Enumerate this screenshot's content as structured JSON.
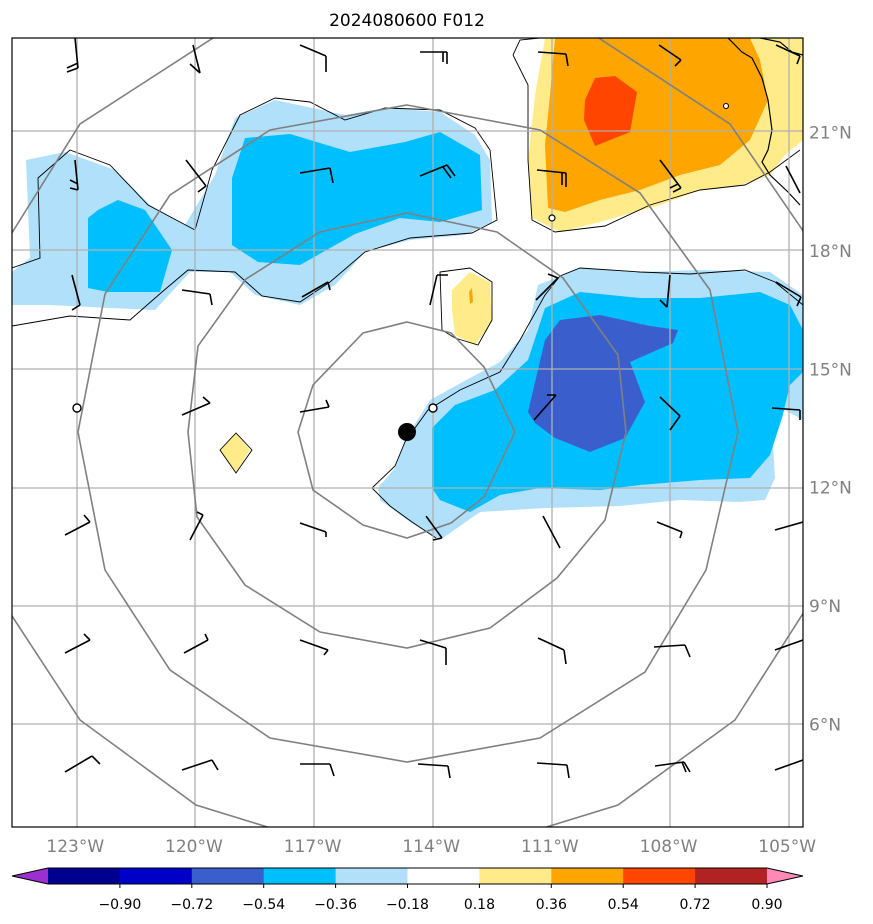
{
  "title": "2024080600 F012",
  "map": {
    "lon_range": [
      -124.6,
      -104.6
    ],
    "lat_range": [
      3.4,
      23.4
    ],
    "lon_ticks": [
      {
        "value": -123,
        "label": "123°W"
      },
      {
        "value": -120,
        "label": "120°W"
      },
      {
        "value": -117,
        "label": "117°W"
      },
      {
        "value": -114,
        "label": "114°W"
      },
      {
        "value": -111,
        "label": "111°W"
      },
      {
        "value": -108,
        "label": "108°W"
      },
      {
        "value": -105,
        "label": "105°W"
      }
    ],
    "lat_ticks": [
      {
        "value": 6,
        "label": "6°N"
      },
      {
        "value": 9,
        "label": "9°N"
      },
      {
        "value": 12,
        "label": "12°N"
      },
      {
        "value": 15,
        "label": "15°N"
      },
      {
        "value": 18,
        "label": "18°N"
      },
      {
        "value": 21,
        "label": "21°N"
      }
    ],
    "storm_center": {
      "lon": -114.6,
      "lat": 13.5
    },
    "range_rings_deg": [
      2.7,
      5.5,
      8.3,
      11.0
    ]
  },
  "colorbar": {
    "levels": [
      "−0.90",
      "−0.72",
      "−0.54",
      "−0.36",
      "−0.18",
      "0.18",
      "0.36",
      "0.54",
      "0.72",
      "0.90"
    ],
    "colors": [
      "#9b30d0",
      "#000090",
      "#0000c8",
      "#3a5fcd",
      "#00bfff",
      "#b0e0fa",
      "#ffffff",
      "#ffeb8a",
      "#ffa500",
      "#ff4500",
      "#b22222",
      "#ff88b4"
    ]
  },
  "fill_colors": {
    "light_blue": "#b0e0fa",
    "blue": "#00bfff",
    "dark_blue": "#3a5fcd",
    "light_yellow": "#ffeb8a",
    "orange": "#ffa500",
    "red_orange": "#ff4500"
  }
}
